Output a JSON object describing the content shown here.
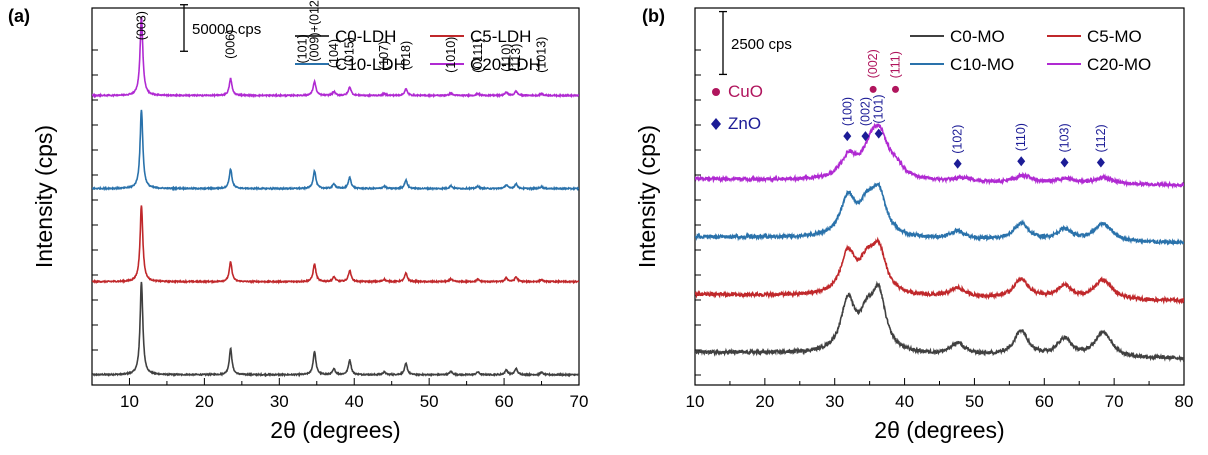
{
  "chart_data": [
    {
      "type": "line",
      "panel_label": "(a)",
      "xlabel": "2θ (degrees)",
      "ylabel": "Intensity (cps)",
      "xlim": [
        5,
        70
      ],
      "xticks": [
        10,
        20,
        30,
        40,
        50,
        60,
        70
      ],
      "ylim": [
        -10000,
        395000
      ],
      "scale_bar": {
        "label": "50000 cps",
        "value": 50000
      },
      "legend_position": "top-right",
      "grid": false,
      "series": [
        {
          "name": "C0-LDH",
          "color": "#404040",
          "offset": 0,
          "baseline": 1000,
          "noise": 600,
          "peak_width": 0.22,
          "peaks": [
            [
              11.6,
              100000
            ],
            [
              23.5,
              28000
            ],
            [
              34.7,
              25000
            ],
            [
              37.3,
              6000
            ],
            [
              39.4,
              16000
            ],
            [
              44.0,
              3000
            ],
            [
              46.9,
              12000
            ],
            [
              52.9,
              3500
            ],
            [
              56.5,
              3000
            ],
            [
              60.3,
              5000
            ],
            [
              61.6,
              6500
            ],
            [
              65.0,
              2500
            ]
          ]
        },
        {
          "name": "C5-LDH",
          "color": "#c0282b",
          "offset": 100000,
          "baseline": 1000,
          "noise": 600,
          "peak_width": 0.22,
          "peaks": [
            [
              11.6,
              82000
            ],
            [
              23.5,
              21000
            ],
            [
              34.7,
              19000
            ],
            [
              37.3,
              5000
            ],
            [
              39.4,
              12000
            ],
            [
              44.0,
              2500
            ],
            [
              46.9,
              9000
            ],
            [
              52.9,
              3000
            ],
            [
              56.5,
              2500
            ],
            [
              60.3,
              4000
            ],
            [
              61.6,
              5000
            ],
            [
              65.0,
              2000
            ]
          ]
        },
        {
          "name": "C10-LDH",
          "color": "#2a72ab",
          "offset": 200000,
          "baseline": 1000,
          "noise": 600,
          "peak_width": 0.22,
          "peaks": [
            [
              11.6,
              85000
            ],
            [
              23.5,
              21000
            ],
            [
              34.7,
              19000
            ],
            [
              37.3,
              5000
            ],
            [
              39.4,
              12000
            ],
            [
              44.0,
              2500
            ],
            [
              46.9,
              9000
            ],
            [
              52.9,
              3000
            ],
            [
              56.5,
              2500
            ],
            [
              60.3,
              4000
            ],
            [
              61.6,
              5000
            ],
            [
              65.0,
              2000
            ]
          ]
        },
        {
          "name": "C20-LDH",
          "color": "#b02ad2",
          "offset": 300000,
          "baseline": 1000,
          "noise": 600,
          "peak_width": 0.22,
          "peaks": [
            [
              11.6,
              85000
            ],
            [
              23.5,
              18000
            ],
            [
              34.7,
              15000
            ],
            [
              37.3,
              4000
            ],
            [
              39.4,
              9000
            ],
            [
              44.0,
              2000
            ],
            [
              46.9,
              7000
            ],
            [
              52.9,
              2500
            ],
            [
              56.5,
              2000
            ],
            [
              60.3,
              3500
            ],
            [
              61.6,
              4500
            ],
            [
              65.0,
              1800
            ]
          ]
        }
      ],
      "annotations": [
        {
          "text": "(003)",
          "x": 11.6,
          "y": 355000
        },
        {
          "text": "(006)",
          "x": 23.5,
          "y": 335000
        },
        {
          "text": "(101)",
          "x": 33.1,
          "y": 330000
        },
        {
          "text": "(009)+(012)",
          "x": 34.7,
          "y": 332000
        },
        {
          "text": "(104)",
          "x": 37.3,
          "y": 325000
        },
        {
          "text": "(015)",
          "x": 39.4,
          "y": 327000
        },
        {
          "text": "(107)",
          "x": 44.0,
          "y": 323000
        },
        {
          "text": "(018)",
          "x": 46.9,
          "y": 323000
        },
        {
          "text": "(1010)",
          "x": 52.9,
          "y": 320000
        },
        {
          "text": "(0111)",
          "x": 56.5,
          "y": 320000
        },
        {
          "text": "(110)",
          "x": 60.3,
          "y": 321000
        },
        {
          "text": "(113)",
          "x": 61.6,
          "y": 321000
        },
        {
          "text": "(1013)",
          "x": 65.0,
          "y": 320000
        }
      ]
    },
    {
      "type": "line",
      "panel_label": "(b)",
      "xlabel": "2θ (degrees)",
      "ylabel": "Intensity (cps)",
      "xlim": [
        10,
        80
      ],
      "xticks": [
        10,
        20,
        30,
        40,
        50,
        60,
        70,
        80
      ],
      "ylim": [
        -1000,
        14000
      ],
      "scale_bar": {
        "label": "2500 cps",
        "value": 2500
      },
      "legend_position": "top-right",
      "grid": false,
      "series": [
        {
          "name": "C0-MO",
          "color": "#404040",
          "offset": 0,
          "baseline": 300,
          "noise": 70,
          "peak_width": 1.2,
          "tail": -250,
          "peaks": [
            [
              31.9,
              2000
            ],
            [
              34.6,
              1200
            ],
            [
              36.3,
              2200
            ],
            [
              47.6,
              450
            ],
            [
              56.7,
              1000
            ],
            [
              62.9,
              700
            ],
            [
              68.1,
              700
            ],
            [
              69.1,
              400
            ]
          ]
        },
        {
          "name": "C5-MO",
          "color": "#c0282b",
          "offset": 2300,
          "baseline": 300,
          "noise": 70,
          "peak_width": 1.25,
          "tail": -250,
          "peaks": [
            [
              31.9,
              1600
            ],
            [
              34.6,
              1050
            ],
            [
              36.3,
              1700
            ],
            [
              47.6,
              350
            ],
            [
              56.7,
              750
            ],
            [
              62.9,
              500
            ],
            [
              68.1,
              550
            ],
            [
              69.1,
              300
            ]
          ]
        },
        {
          "name": "C10-MO",
          "color": "#2a72ab",
          "offset": 4600,
          "baseline": 300,
          "noise": 70,
          "peak_width": 1.3,
          "tail": -250,
          "peaks": [
            [
              31.9,
              1500
            ],
            [
              34.6,
              1000
            ],
            [
              36.3,
              1650
            ],
            [
              47.6,
              320
            ],
            [
              56.7,
              650
            ],
            [
              62.9,
              450
            ],
            [
              68.1,
              500
            ],
            [
              69.1,
              280
            ]
          ]
        },
        {
          "name": "C20-MO",
          "color": "#b02ad2",
          "offset": 6900,
          "baseline": 300,
          "noise": 70,
          "peak_width": 1.4,
          "tail": -250,
          "peaks": [
            [
              32.0,
              850
            ],
            [
              35.2,
              1000
            ],
            [
              36.5,
              1450
            ],
            [
              38.8,
              400
            ],
            [
              48.5,
              150
            ],
            [
              57.0,
              280
            ],
            [
              63.0,
              180
            ],
            [
              68.5,
              250
            ]
          ]
        }
      ],
      "phase_legend": [
        {
          "label": "CuO",
          "symbol": "circle",
          "color": "#b0155d"
        },
        {
          "label": "ZnO",
          "symbol": "diamond",
          "color": "#1c1c96"
        }
      ],
      "annotations": [
        {
          "text": "(002)",
          "phase": "CuO",
          "x": 35.5,
          "y": 11000
        },
        {
          "text": "(111)",
          "phase": "CuO",
          "x": 38.7,
          "y": 11000
        },
        {
          "text": "(100)",
          "phase": "ZnO",
          "x": 31.8,
          "y": 9100
        },
        {
          "text": "(002)",
          "phase": "ZnO",
          "x": 34.4,
          "y": 9100
        },
        {
          "text": "(101)",
          "phase": "ZnO",
          "x": 36.3,
          "y": 9200
        },
        {
          "text": "(102)",
          "phase": "ZnO",
          "x": 47.6,
          "y": 8000
        },
        {
          "text": "(110)",
          "phase": "ZnO",
          "x": 56.7,
          "y": 8100
        },
        {
          "text": "(103)",
          "phase": "ZnO",
          "x": 62.9,
          "y": 8050
        },
        {
          "text": "(112)",
          "phase": "ZnO",
          "x": 68.1,
          "y": 8050
        }
      ]
    }
  ]
}
